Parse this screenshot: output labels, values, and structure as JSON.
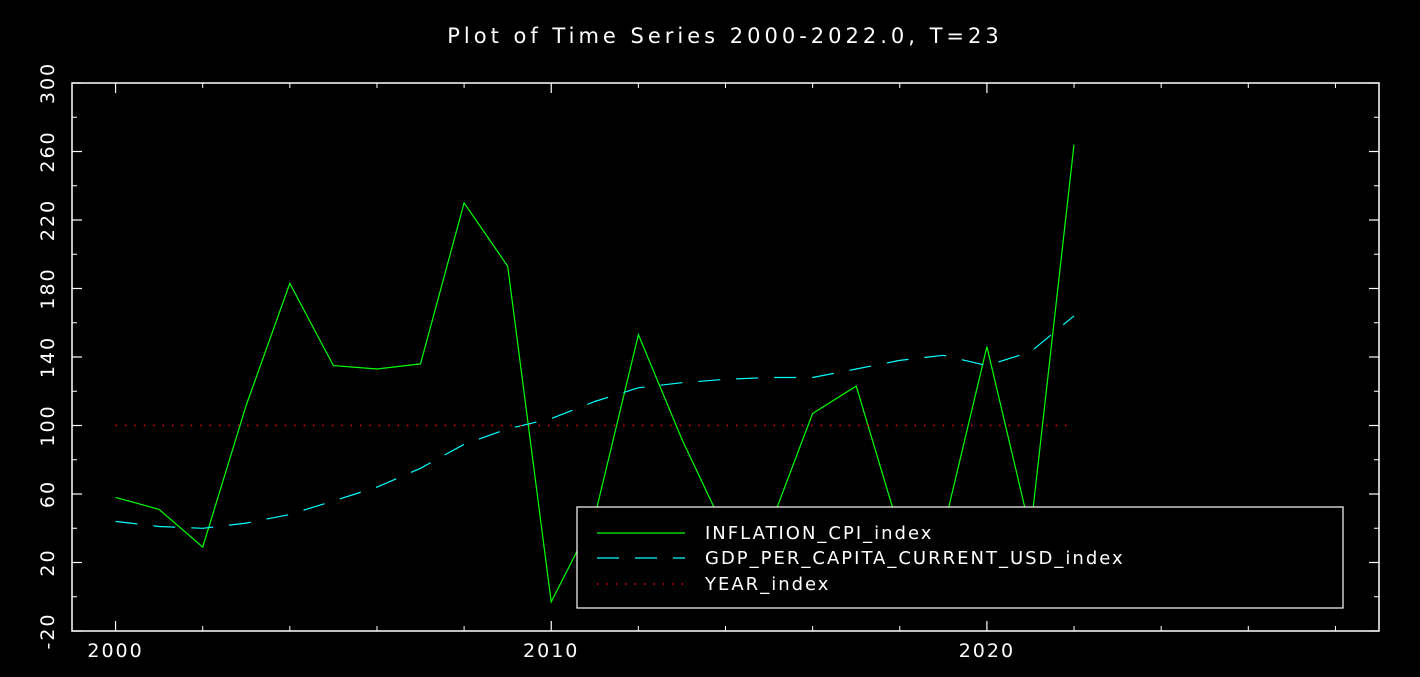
{
  "chart_data": {
    "type": "line",
    "title": "Plot of Time Series 2000-2022.0, T=23",
    "xlabel": "",
    "ylabel": "",
    "xlim": [
      1999,
      2029
    ],
    "ylim": [
      -20,
      300
    ],
    "x_ticks": [
      2000,
      2010,
      2020
    ],
    "x_tick_labels": [
      "2000",
      "2010",
      "2020"
    ],
    "y_ticks": [
      -20,
      20,
      60,
      100,
      140,
      180,
      220,
      260,
      300
    ],
    "y_tick_labels": [
      "-20",
      "20",
      "60",
      "100",
      "140",
      "180",
      "220",
      "260",
      "300"
    ],
    "legend_position": "bottom-right",
    "grid": false,
    "x": [
      2000,
      2001,
      2002,
      2003,
      2004,
      2005,
      2006,
      2007,
      2008,
      2009,
      2010,
      2011,
      2012,
      2013,
      2014,
      2015,
      2016,
      2017,
      2018,
      2019,
      2020,
      2021,
      2022
    ],
    "series": [
      {
        "name": "INFLATION_CPI_index",
        "style": "solid",
        "color": "#00ff00",
        "values": [
          58,
          51,
          29,
          112,
          183,
          135,
          133,
          136,
          230,
          193,
          -3,
          47,
          153,
          92,
          38,
          40,
          107,
          123,
          38,
          39,
          146,
          38,
          264
        ]
      },
      {
        "name": "GDP_PER_CAPITA_CURRENT_USD_index",
        "style": "dashed",
        "color": "#00ffff",
        "values": [
          44,
          41,
          40,
          43,
          48,
          56,
          64,
          75,
          89,
          98,
          104,
          114,
          122,
          125,
          127,
          128,
          128,
          133,
          138,
          141,
          135,
          143,
          164
        ]
      },
      {
        "name": "YEAR_index",
        "style": "dotted",
        "color": "#ff0000",
        "values": [
          100,
          100,
          100,
          100,
          100,
          100,
          100,
          100,
          100,
          100,
          100,
          100,
          100,
          100,
          100,
          100,
          100,
          100,
          100,
          100,
          100,
          100,
          100
        ]
      }
    ]
  }
}
